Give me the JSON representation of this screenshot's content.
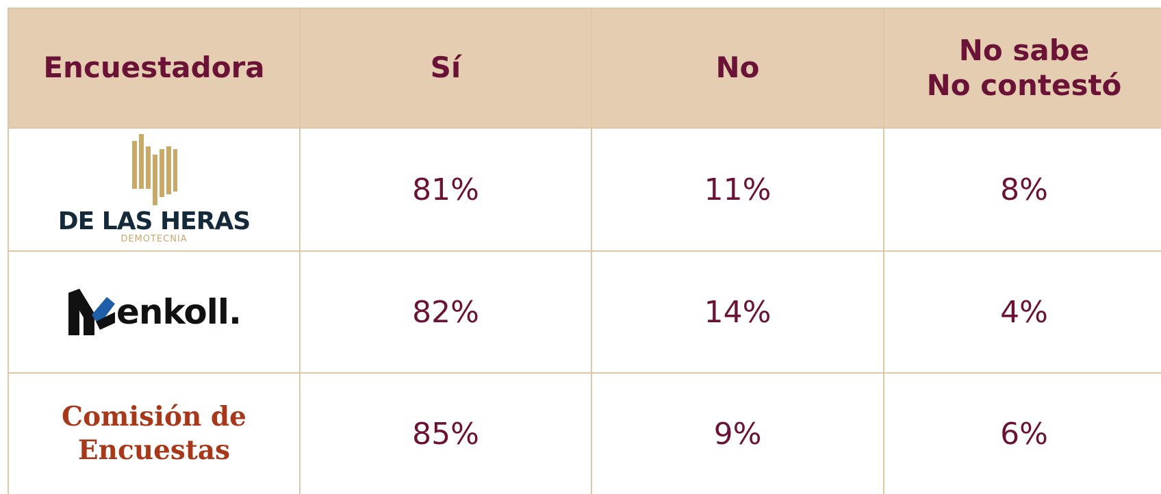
{
  "table": {
    "header": [
      "Encuestadora",
      "Sí",
      "No",
      "No sabe\nNo contestó"
    ],
    "rows": [
      {
        "pollster": {
          "name": "DE LAS HERAS",
          "subtitle": "DEMOTECNIA"
        },
        "values": [
          "81%",
          "11%",
          "8%"
        ]
      },
      {
        "pollster": {
          "name": "enkoll."
        },
        "values": [
          "82%",
          "14%",
          "4%"
        ]
      },
      {
        "pollster": {
          "name": "Comisión de\nEncuestas"
        },
        "values": [
          "85%",
          "9%",
          "6%"
        ]
      }
    ]
  }
}
